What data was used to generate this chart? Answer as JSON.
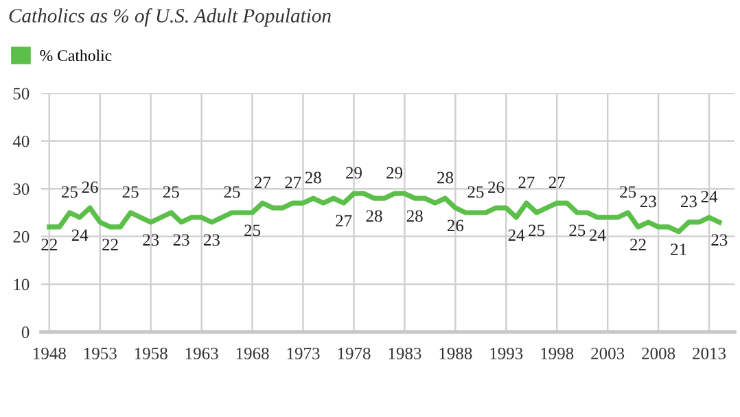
{
  "chart_data": {
    "type": "line",
    "title": "Catholics as % of U.S. Adult Population",
    "x": [
      1948,
      1949,
      1950,
      1951,
      1952,
      1953,
      1954,
      1955,
      1956,
      1957,
      1958,
      1959,
      1960,
      1961,
      1962,
      1963,
      1964,
      1965,
      1966,
      1967,
      1968,
      1969,
      1970,
      1971,
      1972,
      1973,
      1974,
      1975,
      1976,
      1977,
      1978,
      1979,
      1980,
      1981,
      1982,
      1983,
      1984,
      1985,
      1986,
      1987,
      1988,
      1989,
      1990,
      1991,
      1992,
      1993,
      1994,
      1995,
      1996,
      1997,
      1998,
      1999,
      2000,
      2001,
      2002,
      2003,
      2004,
      2005,
      2006,
      2007,
      2008,
      2009,
      2010,
      2011,
      2012,
      2013,
      2014
    ],
    "series": [
      {
        "name": "% Catholic",
        "color": "#5cbf4a",
        "values": [
          22,
          22,
          25,
          24,
          26,
          23,
          22,
          22,
          25,
          24,
          23,
          24,
          25,
          23,
          24,
          24,
          23,
          24,
          25,
          25,
          25,
          27,
          26,
          26,
          27,
          27,
          28,
          27,
          28,
          27,
          29,
          29,
          28,
          28,
          29,
          29,
          28,
          28,
          27,
          28,
          26,
          25,
          25,
          25,
          26,
          26,
          24,
          27,
          25,
          26,
          27,
          27,
          25,
          25,
          24,
          24,
          24,
          25,
          22,
          23,
          22,
          22,
          21,
          23,
          23,
          24,
          23
        ],
        "value_labels": [
          "22",
          null,
          "25",
          "24",
          "26",
          null,
          "22",
          null,
          "25",
          null,
          "23",
          null,
          "25",
          "23",
          null,
          null,
          "23",
          null,
          "25",
          null,
          "25",
          "27",
          null,
          null,
          "27",
          null,
          "28",
          null,
          null,
          "27",
          "29",
          null,
          "28",
          null,
          "29",
          null,
          "28",
          null,
          null,
          "28",
          "26",
          null,
          "25",
          null,
          "26",
          null,
          "24",
          "27",
          "25",
          null,
          "27",
          null,
          "25",
          null,
          "24",
          null,
          null,
          "25",
          "22",
          "23",
          null,
          null,
          "21",
          "23",
          null,
          "24",
          "23"
        ]
      }
    ],
    "xlim": [
      1947.2,
      2015.5
    ],
    "xticks": [
      1948,
      1953,
      1958,
      1963,
      1968,
      1973,
      1978,
      1983,
      1988,
      1993,
      1998,
      2003,
      2008,
      2013
    ],
    "ylim": [
      0,
      50
    ],
    "yticks": [
      0,
      10,
      20,
      30,
      40,
      50
    ],
    "grid": true,
    "legend": "top left"
  }
}
